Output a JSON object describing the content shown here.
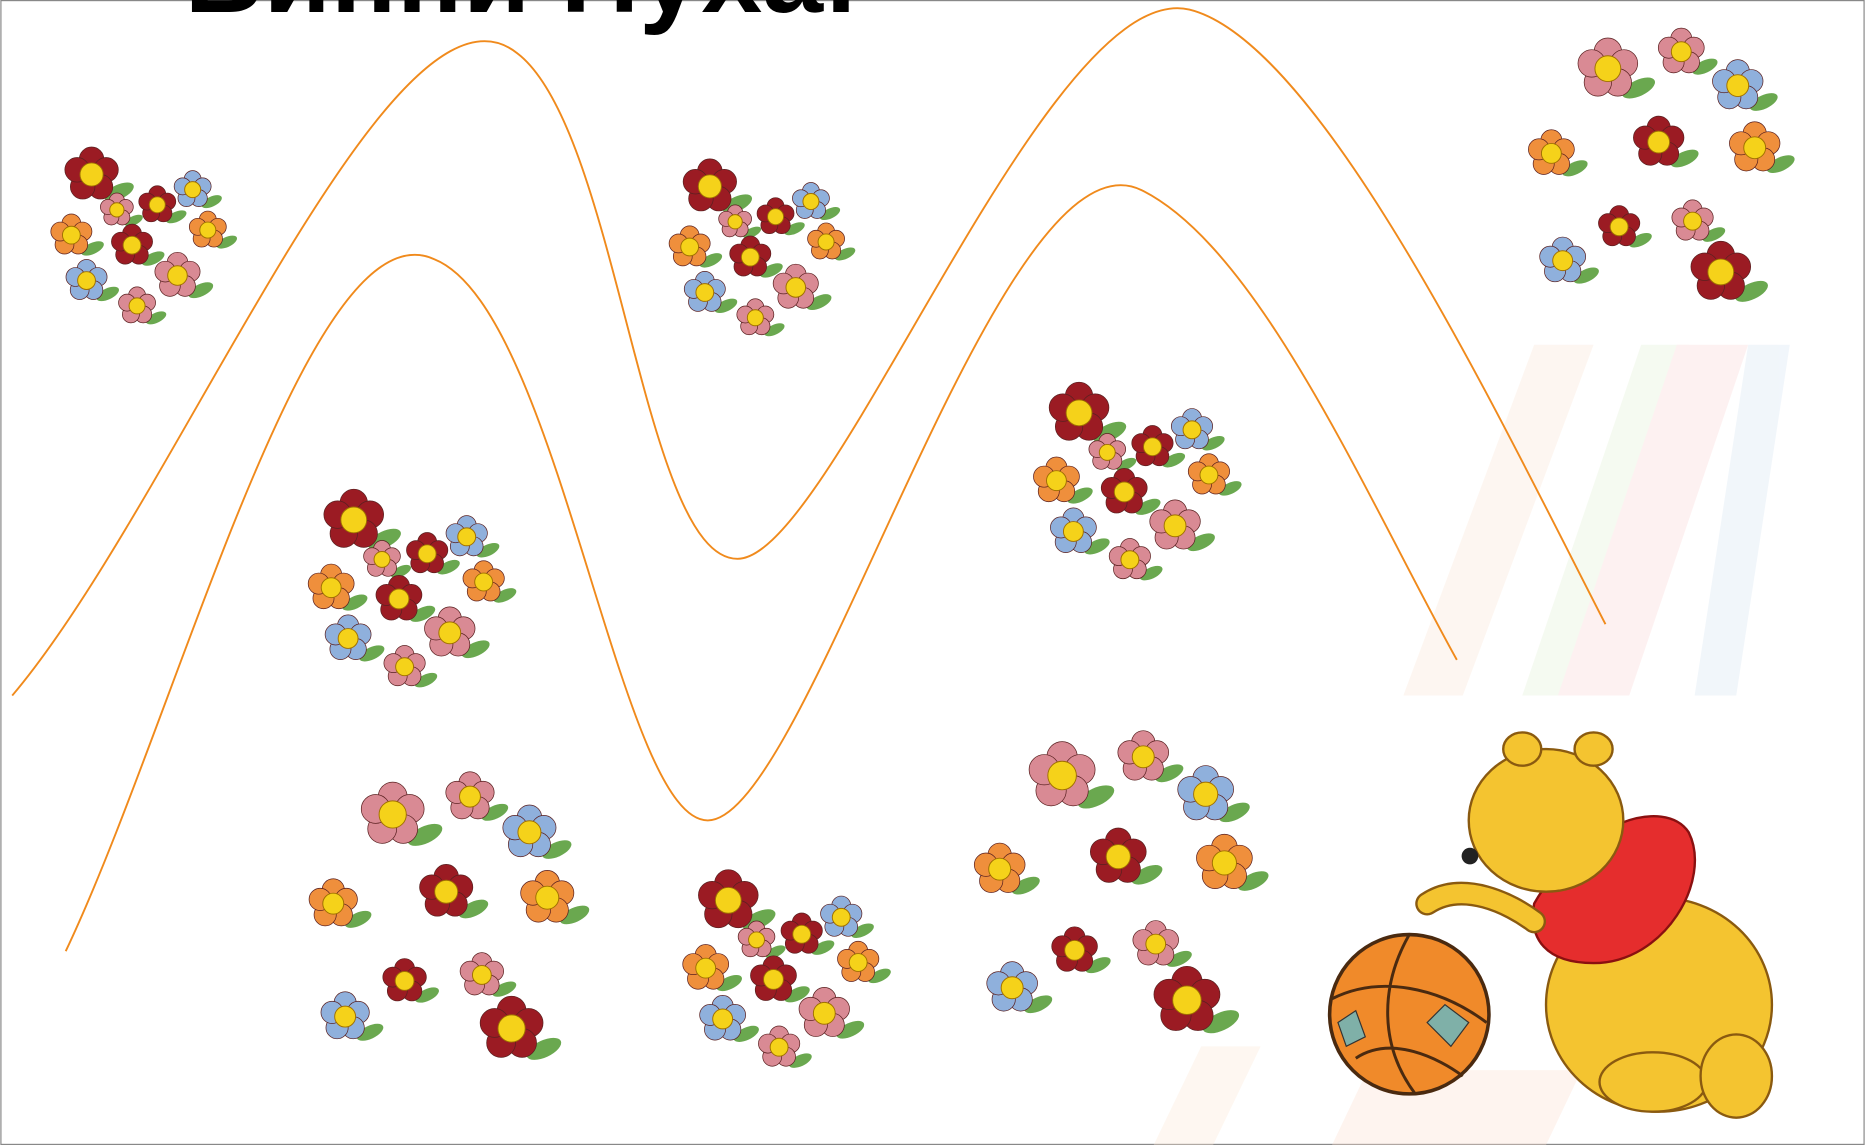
{
  "header": {
    "title": "Винни Пуха!"
  }
}
